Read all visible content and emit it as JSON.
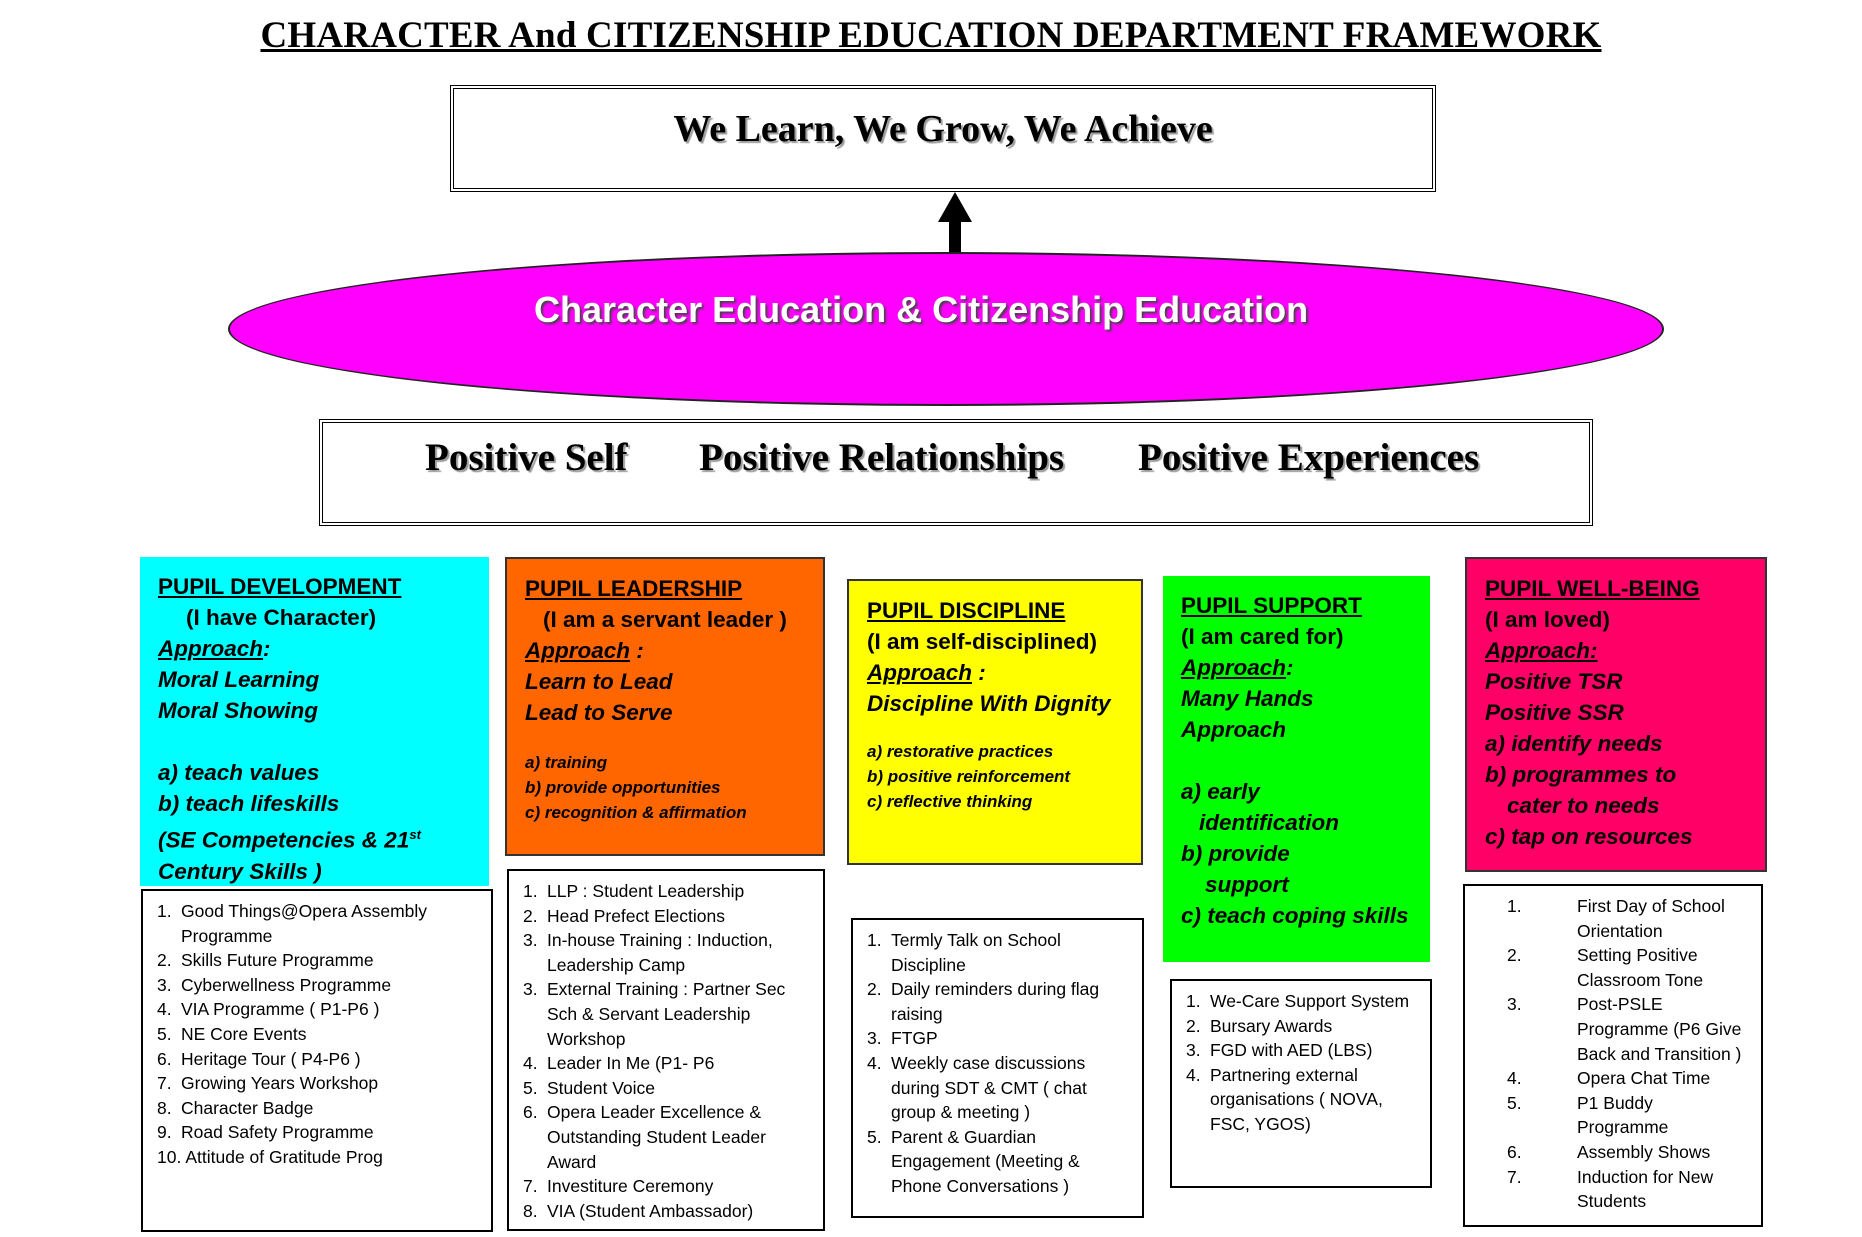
{
  "title": "CHARACTER And CITIZENSHIP EDUCATION  DEPARTMENT FRAMEWORK",
  "vision": "We Learn, We Grow, We Achieve",
  "core": "Character Education & Citizenship Education",
  "pillars": [
    "Positive Self",
    "Positive Relationships",
    "Positive Experiences"
  ],
  "colors": {
    "development": "#00ffff",
    "leadership": "#ff6600",
    "discipline": "#ffff00",
    "support": "#00ff00",
    "wellbeing": "#ff0066",
    "ellipse": "#ff00ff"
  },
  "icons": {
    "arrow": "arrow-up-icon"
  },
  "development": {
    "heading": "PUPIL DEVELOPMENT",
    "tagline": "(I have  Character)",
    "approach_label": "Approach",
    "approach": [
      "Moral Learning",
      "Moral Showing"
    ],
    "points": [
      "a) teach values",
      "b) teach lifeskills",
      "(SE Competencies & 21",
      "Century Skills )"
    ],
    "superscript": "st",
    "programmes": [
      {
        "n": "1.",
        "t": "Good Things@Opera Assembly Programme"
      },
      {
        "n": "2.",
        "t": "Skills Future Programme"
      },
      {
        "n": "3.",
        "t": "Cyberwellness Programme"
      },
      {
        "n": "4.",
        "t": "VIA Programme ( P1-P6 )"
      },
      {
        "n": "5.",
        "t": "NE Core Events"
      },
      {
        "n": "6.",
        "t": "Heritage Tour  ( P4-P6 )"
      },
      {
        "n": "7.",
        "t": "Growing Years Workshop"
      },
      {
        "n": "8.",
        "t": "Character Badge"
      },
      {
        "n": "9.",
        "t": "Road Safety Programme"
      },
      {
        "n": "10.",
        "t": "Attitude of Gratitude Prog"
      }
    ]
  },
  "leadership": {
    "heading": "PUPIL LEADERSHIP",
    "tagline": "(I am a servant leader )",
    "approach_label": "Approach",
    "approach": [
      "Learn to Lead",
      "Lead to Serve"
    ],
    "points": [
      "a) training",
      "b) provide   opportunities",
      "c) recognition &  affirmation"
    ],
    "programmes": [
      {
        "n": "1.",
        "t": "LLP : Student Leadership"
      },
      {
        "n": "2.",
        "t": "Head Prefect Elections"
      },
      {
        "n": "3.",
        "t": "In-house Training : Induction, Leadership Camp"
      },
      {
        "n": "3.",
        "t": "External Training : Partner Sec Sch & Servant Leadership Workshop"
      },
      {
        "n": "4.",
        "t": "Leader In Me  (P1- P6"
      },
      {
        "n": "5.",
        "t": "Student Voice"
      },
      {
        "n": "6.",
        "t": "Opera Leader Excellence & Outstanding Student Leader Award"
      },
      {
        "n": "7.",
        "t": "Investiture Ceremony"
      },
      {
        "n": "8.",
        "t": "VIA (Student Ambassador)"
      }
    ]
  },
  "discipline": {
    "heading": "PUPIL DISCIPLINE",
    "tagline": "(I am self-disciplined)",
    "approach_label": "Approach",
    "approach": [
      "Discipline With Dignity"
    ],
    "points": [
      "a) restorative practices",
      "b) positive reinforcement",
      "c) reflective thinking"
    ],
    "programmes": [
      {
        "n": "1.",
        "t": "Termly Talk on School Discipline"
      },
      {
        "n": "2.",
        "t": "Daily reminders during flag raising"
      },
      {
        "n": "3.",
        "t": "FTGP"
      },
      {
        "n": "4.",
        "t": "Weekly case discussions during SDT & CMT ( chat group & meeting )"
      },
      {
        "n": "5.",
        "t": "Parent & Guardian Engagement  (Meeting & Phone Conversations )"
      }
    ]
  },
  "support": {
    "heading": "PUPIL SUPPORT",
    "tagline": "(I am cared for)",
    "approach_label": "Approach",
    "approach": [
      "Many Hands",
      "Approach"
    ],
    "points": [
      "a) early",
      "identification",
      "b) provide",
      "support",
      "c) teach coping skills"
    ],
    "programmes": [
      {
        "n": "1.",
        "t": "We-Care Support System"
      },
      {
        "n": "2.",
        "t": "Bursary Awards"
      },
      {
        "n": "3.",
        "t": "FGD with AED (LBS)"
      },
      {
        "n": "4.",
        "t": "Partnering external organisations ( NOVA, FSC, YGOS)"
      }
    ]
  },
  "wellbeing": {
    "heading": "PUPIL WELL-BEING",
    "tagline": "(I am loved)",
    "approach_label": "Approach:",
    "approach": [
      "Positive TSR",
      "Positive SSR"
    ],
    "points": [
      "a) identify needs",
      "b) programmes  to",
      "cater to needs",
      "c) tap on resources"
    ],
    "programmes": [
      {
        "n": "1.",
        "t": "First Day of School Orientation"
      },
      {
        "n": "2.",
        "t": "Setting Positive Classroom Tone"
      },
      {
        "n": "3.",
        "t": "Post-PSLE Programme (P6 Give Back and Transition )"
      },
      {
        "n": "4.",
        "t": "Opera Chat Time"
      },
      {
        "n": "5.",
        "t": "P1 Buddy Programme"
      },
      {
        "n": "6.",
        "t": "Assembly Shows"
      },
      {
        "n": "7.",
        "t": "Induction for New Students"
      }
    ]
  }
}
